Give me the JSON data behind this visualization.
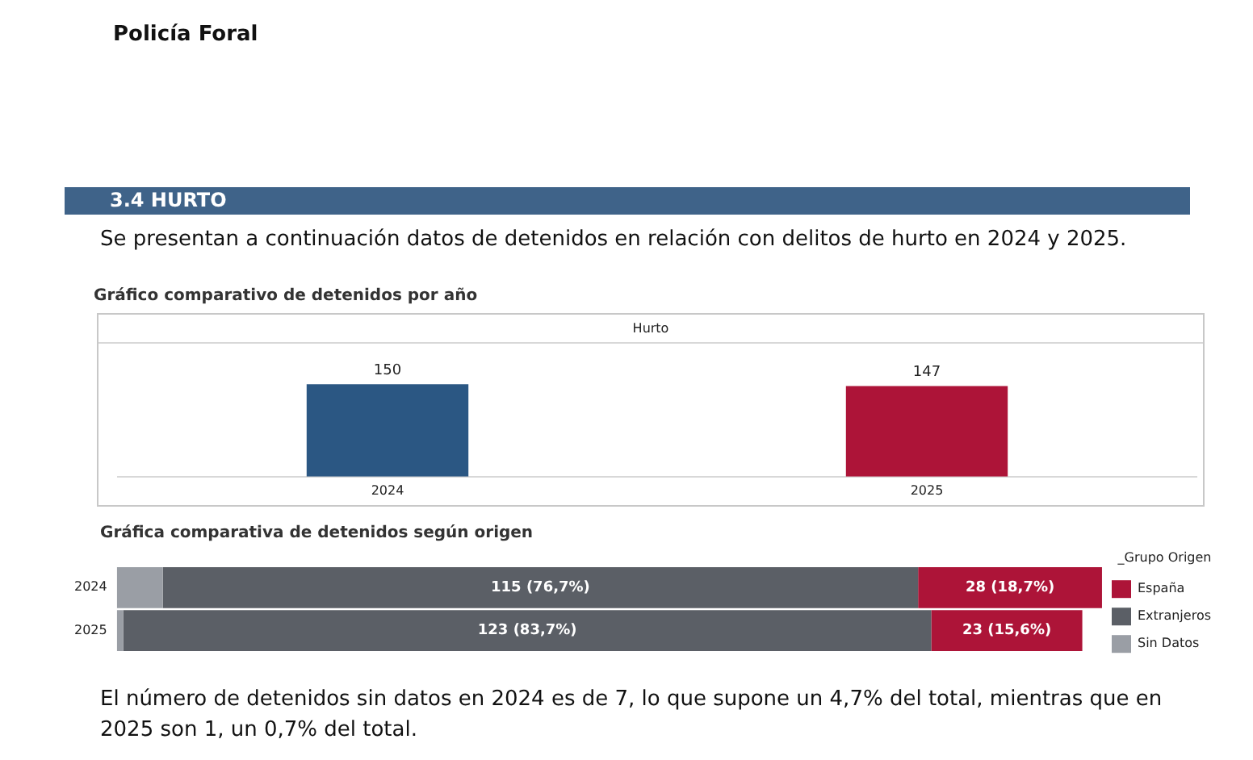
{
  "chart_data": [
    {
      "type": "bar",
      "title": "Gráfico comparativo de detenidos por año",
      "subtitle": "Hurto",
      "categories": [
        "2024",
        "2025"
      ],
      "values": [
        150,
        147
      ],
      "colors": [
        "#2b5783",
        "#ad1438"
      ],
      "data_labels": true,
      "tick_labels": "x",
      "grid": false,
      "legend": false,
      "annotations": [
        "Policía Foral",
        "3.4 HURTO",
        "Se presentan a continuación datos de detenidos en relación con delitos de hurto en 2024 y 2025.",
        "El número de detenidos sin datos en 2024 es de 7, lo que supone un 4,7% del total, mientras que en 2025 son 1, un 0,7% del total."
      ]
    },
    {
      "type": "bar",
      "title": "Gráfica comparativa de detenidos según origen",
      "orientation": "horizontal",
      "stacked": true,
      "categories": [
        "2024",
        "2025"
      ],
      "tick_labels": "y",
      "grid": false,
      "legend": "right",
      "legend_title": "_Grupo Origen",
      "series": [
        {
          "name": "Sin Datos",
          "color": "#9a9ea5",
          "values": [
            7,
            1
          ]
        },
        {
          "name": "Extranjeros",
          "color": "#5b5f66",
          "values": [
            115,
            123
          ],
          "value_labels": [
            "115 (76,7%)",
            "123 (83,7%)"
          ]
        },
        {
          "name": "España",
          "color": "#ad1438",
          "values": [
            28,
            23
          ],
          "value_labels": [
            "28 (18,7%)",
            "23 (15,6%)"
          ]
        }
      ]
    }
  ]
}
